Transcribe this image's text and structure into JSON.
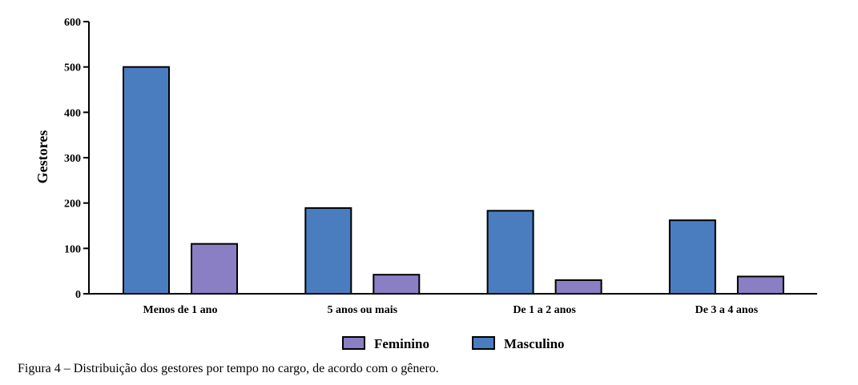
{
  "chart_data": {
    "type": "bar",
    "ylabel": "Gestores",
    "xlabel": "",
    "ylim": [
      0,
      600
    ],
    "yticks": [
      0,
      100,
      200,
      300,
      400,
      500,
      600
    ],
    "categories": [
      "Menos de 1 ano",
      "5 anos ou mais",
      "De 1 a 2 anos",
      "De 3 a 4 anos"
    ],
    "series": [
      {
        "name": "Masculino",
        "color": "#4a7dc0",
        "values": [
          500,
          189,
          183,
          162
        ]
      },
      {
        "name": "Feminino",
        "color": "#8a7fc4",
        "values": [
          110,
          42,
          30,
          38
        ]
      }
    ],
    "legend": {
      "placement": "bottom-center",
      "order": [
        "Feminino",
        "Masculino"
      ]
    },
    "grid": false
  },
  "caption": "Figura 4 – Distribuição dos gestores por tempo no cargo, de acordo com o gênero."
}
